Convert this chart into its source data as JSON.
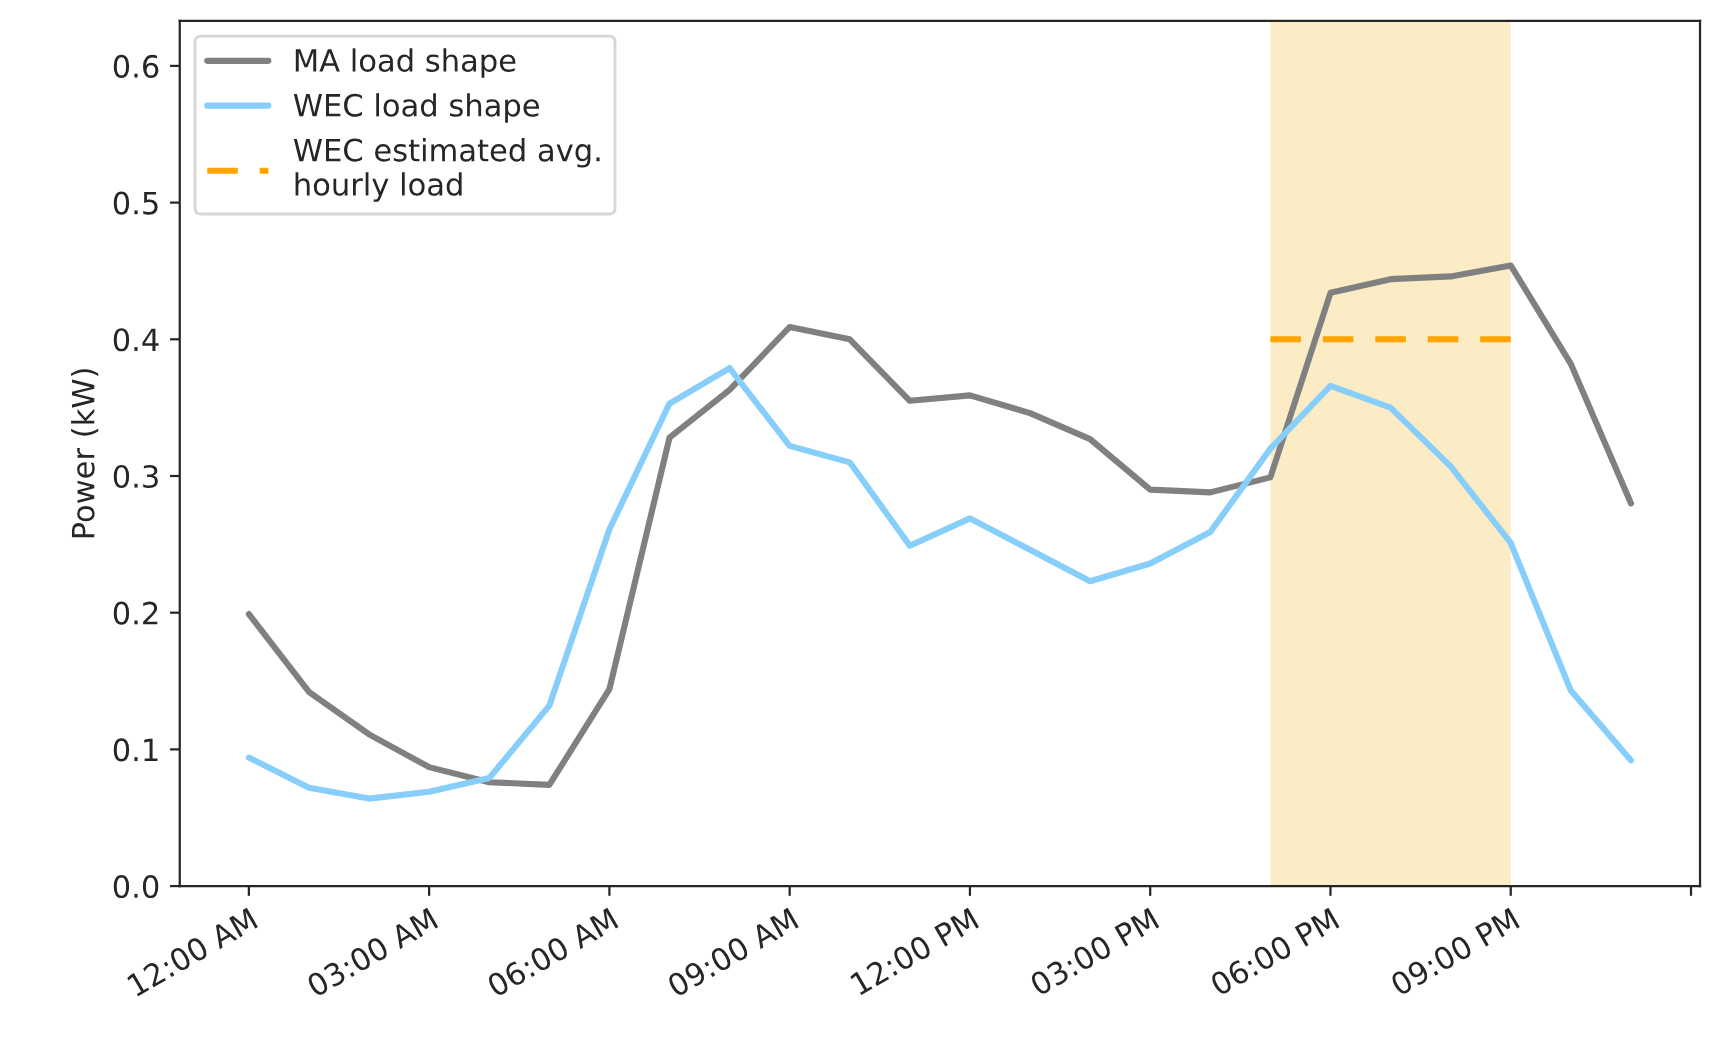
{
  "chart_data": {
    "type": "line",
    "ylabel": "Power (kW)",
    "x": [
      0,
      1,
      2,
      3,
      4,
      5,
      6,
      7,
      8,
      9,
      10,
      11,
      12,
      13,
      14,
      15,
      16,
      17,
      18,
      19,
      20,
      21,
      22,
      23
    ],
    "series": [
      {
        "name": "MA load shape",
        "color": "#808080",
        "line_style": "solid",
        "values": [
          0.199,
          0.142,
          0.111,
          0.087,
          0.076,
          0.074,
          0.144,
          0.328,
          0.363,
          0.409,
          0.4,
          0.355,
          0.359,
          0.346,
          0.327,
          0.29,
          0.288,
          0.299,
          0.434,
          0.444,
          0.446,
          0.454,
          0.382,
          0.28
        ]
      },
      {
        "name": "WEC load shape",
        "color": "#87cefa",
        "line_style": "solid",
        "values": [
          0.094,
          0.072,
          0.064,
          0.069,
          0.079,
          0.132,
          0.261,
          0.353,
          0.379,
          0.322,
          0.31,
          0.249,
          0.269,
          0.246,
          0.223,
          0.236,
          0.259,
          0.32,
          0.366,
          0.35,
          0.307,
          0.251,
          0.143,
          0.092
        ]
      },
      {
        "name": "WEC estimated avg.\nhourly load",
        "color": "#ffa500",
        "line_style": "dashed",
        "x": [
          17,
          21
        ],
        "values": [
          0.4,
          0.4
        ]
      }
    ],
    "bands": [
      {
        "axis": "x",
        "from": 17,
        "to": 21,
        "color": "#fcecc6"
      }
    ],
    "xlim": [
      -1.15,
      24.15
    ],
    "xticks": [
      {
        "value": 0,
        "label": "12:00 AM"
      },
      {
        "value": 3,
        "label": "03:00 AM"
      },
      {
        "value": 6,
        "label": "06:00 AM"
      },
      {
        "value": 9,
        "label": "09:00 AM"
      },
      {
        "value": 12,
        "label": "12:00 PM"
      },
      {
        "value": 15,
        "label": "03:00 PM"
      },
      {
        "value": 18,
        "label": "06:00 PM"
      },
      {
        "value": 21,
        "label": "09:00 PM"
      },
      {
        "value": 24,
        "label": null
      }
    ],
    "ylim": [
      0,
      0.633
    ],
    "yticks": [
      {
        "value": 0,
        "label": "0.0"
      },
      {
        "value": 0.1,
        "label": "0.1"
      },
      {
        "value": 0.2,
        "label": "0.2"
      },
      {
        "value": 0.3,
        "label": "0.3"
      },
      {
        "value": 0.4,
        "label": "0.4"
      },
      {
        "value": 0.5,
        "label": "0.5"
      },
      {
        "value": 0.6,
        "label": "0.6"
      }
    ],
    "grid": false,
    "legend": "top left",
    "marker": "none"
  }
}
